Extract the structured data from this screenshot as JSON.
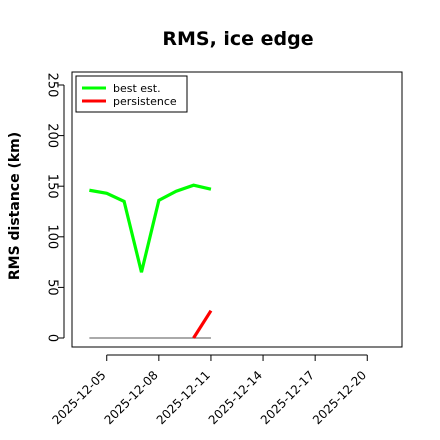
{
  "chart_data": {
    "type": "line",
    "title": "RMS, ice edge",
    "ylabel": "RMS distance (km)",
    "xlabel": "",
    "ylim": [
      0,
      250
    ],
    "yticks": [
      0,
      50,
      100,
      150,
      200,
      250
    ],
    "xlim": [
      "2025-12-03",
      "2025-12-22"
    ],
    "xticks": [
      "2025-12-05",
      "2025-12-08",
      "2025-12-11",
      "2025-12-14",
      "2025-12-17",
      "2025-12-20"
    ],
    "grid": false,
    "legend_position": "top-left",
    "series": [
      {
        "name": "best est.",
        "color": "#00ff00",
        "points": [
          {
            "x": "2025-12-04",
            "y": 146
          },
          {
            "x": "2025-12-05",
            "y": 143
          },
          {
            "x": "2025-12-06",
            "y": 135
          },
          {
            "x": "2025-12-07",
            "y": 65
          },
          {
            "x": "2025-12-08",
            "y": 136
          },
          {
            "x": "2025-12-09",
            "y": 145
          },
          {
            "x": "2025-12-10",
            "y": 151
          },
          {
            "x": "2025-12-11",
            "y": 147
          }
        ]
      },
      {
        "name": "persistence",
        "color": "#ff0000",
        "points": [
          {
            "x": "2025-12-10",
            "y": 0
          },
          {
            "x": "2025-12-11",
            "y": 27
          }
        ]
      }
    ],
    "reference_line": {
      "color": "#555555",
      "points": [
        {
          "x": "2025-12-04",
          "y": 0
        },
        {
          "x": "2025-12-11",
          "y": 0
        }
      ]
    }
  }
}
